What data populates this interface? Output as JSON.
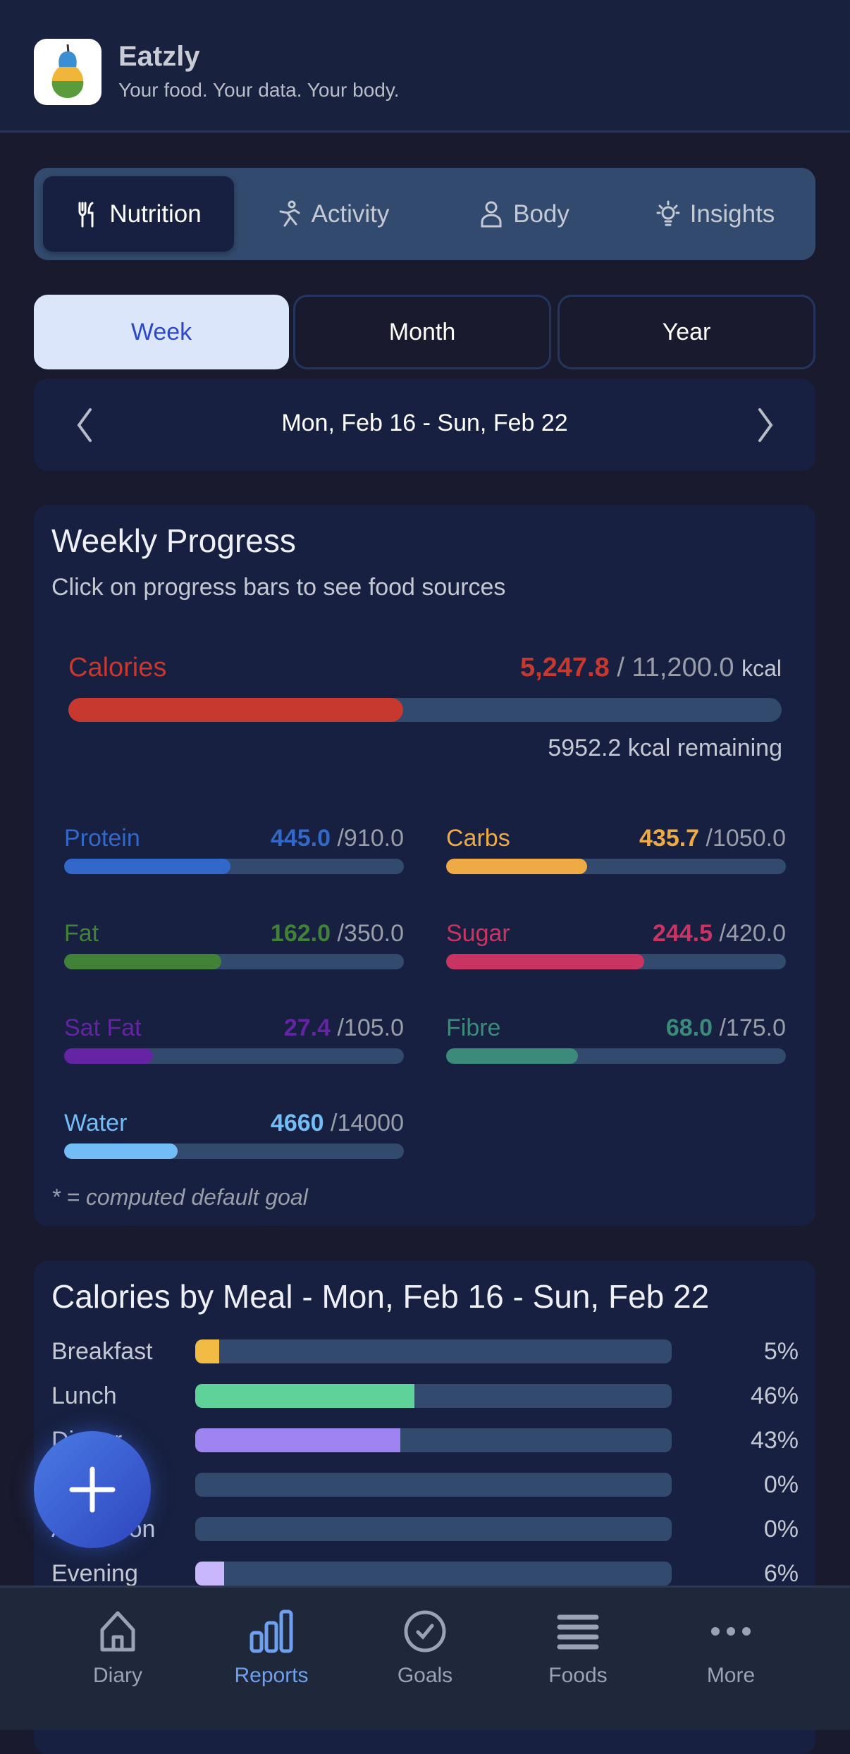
{
  "header": {
    "title": "Eatzly",
    "tagline": "Your food. Your data. Your body."
  },
  "tabs": [
    {
      "label": "Nutrition",
      "icon": "fork-knife-icon",
      "active": true
    },
    {
      "label": "Activity",
      "icon": "running-figure-icon"
    },
    {
      "label": "Body",
      "icon": "person-icon"
    },
    {
      "label": "Insights",
      "icon": "lightbulb-icon"
    }
  ],
  "period": {
    "options": [
      "Week",
      "Month",
      "Year"
    ],
    "selected": "Week"
  },
  "date_range": "Mon, Feb 16 - Sun, Feb 22",
  "weekly": {
    "title": "Weekly Progress",
    "subtitle": "Click on progress bars to see food sources",
    "calories": {
      "label": "Calories",
      "value": "5,247.8",
      "goal": "/ 11,200.0",
      "unit": "kcal",
      "percent": 46.9,
      "remaining": "5952.2 kcal remaining",
      "color": "#c7382f"
    },
    "macros": [
      {
        "label": "Protein",
        "value": "445.0",
        "goal": "/910.0",
        "percent": 48.9,
        "color": "#3168c9"
      },
      {
        "label": "Carbs",
        "value": "435.7",
        "goal": "/1050.0",
        "percent": 41.5,
        "color": "#eeaa44"
      },
      {
        "label": "Fat",
        "value": "162.0",
        "goal": "/350.0",
        "percent": 46.3,
        "color": "#418238"
      },
      {
        "label": "Sugar",
        "value": "244.5",
        "goal": "/420.0",
        "percent": 58.2,
        "color": "#c93462"
      },
      {
        "label": "Sat Fat",
        "value": "27.4",
        "goal": "/105.0",
        "percent": 26.1,
        "color": "#6524a3"
      },
      {
        "label": "Fibre",
        "value": "68.0",
        "goal": "/175.0",
        "percent": 38.9,
        "color": "#3b8a7a"
      },
      {
        "label": "Water",
        "value": "4660",
        "goal": "/14000",
        "percent": 33.3,
        "color": "#72bdf5"
      }
    ],
    "footnote": "* = computed default goal"
  },
  "meals": {
    "title": "Calories by Meal - Mon, Feb 16 - Sun, Feb 22",
    "rows": [
      {
        "label": "Breakfast",
        "pct": "5%",
        "percent": 5,
        "color": "#f2bb44"
      },
      {
        "label": "Lunch",
        "pct": "46%",
        "percent": 46,
        "color": "#5ed298"
      },
      {
        "label": "Dinner",
        "pct": "43%",
        "percent": 43,
        "color": "#9e84f2"
      },
      {
        "label": "",
        "pct": "0%",
        "percent": 0,
        "color": "#9e84f2"
      },
      {
        "label": "Afternoon",
        "pct": "0%",
        "percent": 0,
        "color": "#9e84f2"
      },
      {
        "label": "Evening",
        "pct": "6%",
        "percent": 6,
        "color": "#c8b7fb"
      }
    ]
  },
  "bottom_nav": [
    {
      "label": "Diary",
      "icon": "home-icon"
    },
    {
      "label": "Reports",
      "icon": "bar-chart-icon",
      "active": true
    },
    {
      "label": "Goals",
      "icon": "check-circle-icon"
    },
    {
      "label": "Foods",
      "icon": "list-icon"
    },
    {
      "label": "More",
      "icon": "more-dots-icon"
    }
  ],
  "fab": {
    "icon": "plus-icon"
  }
}
